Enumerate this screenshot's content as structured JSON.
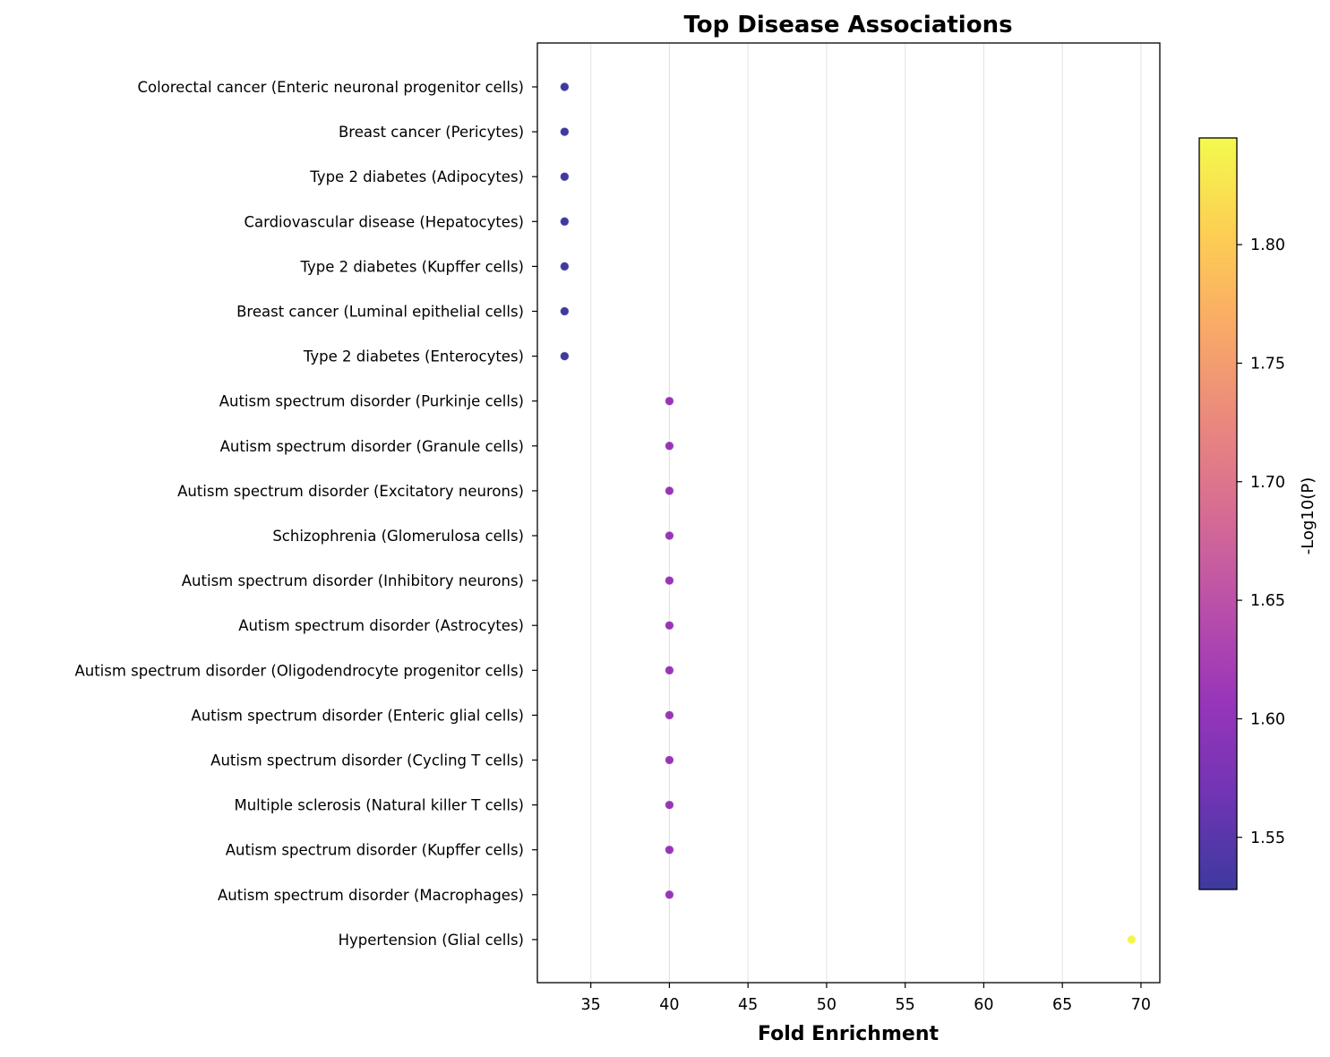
{
  "chart_data": {
    "type": "scatter",
    "title": "Top Disease Associations",
    "xlabel": "Fold Enrichment",
    "ylabel": "",
    "xlim": [
      31.6,
      71.2
    ],
    "xticks": [
      35,
      40,
      45,
      50,
      55,
      60,
      65,
      70
    ],
    "grid": "vertical",
    "colormap": "plasma",
    "colorbar": {
      "label": "-Log10(P)",
      "range": [
        1.528,
        1.845
      ],
      "ticks": [
        "1.55",
        "1.60",
        "1.65",
        "1.70",
        "1.75",
        "1.80"
      ]
    },
    "categories": [
      "Colorectal cancer (Enteric neuronal progenitor cells)",
      "Breast cancer (Pericytes)",
      "Type 2 diabetes (Adipocytes)",
      "Cardiovascular disease (Hepatocytes)",
      "Type 2 diabetes (Kupffer cells)",
      "Breast cancer (Luminal epithelial cells)",
      "Type 2 diabetes (Enterocytes)",
      "Autism spectrum disorder (Purkinje cells)",
      "Autism spectrum disorder (Granule cells)",
      "Autism spectrum disorder (Excitatory neurons)",
      "Schizophrenia (Glomerulosa cells)",
      "Autism spectrum disorder (Inhibitory neurons)",
      "Autism spectrum disorder (Astrocytes)",
      "Autism spectrum disorder (Oligodendrocyte progenitor cells)",
      "Autism spectrum disorder (Enteric glial cells)",
      "Autism spectrum disorder (Cycling T cells)",
      "Multiple sclerosis (Natural killer T cells)",
      "Autism spectrum disorder (Kupffer cells)",
      "Autism spectrum disorder (Macrophages)",
      "Hypertension (Glial cells)"
    ],
    "x": [
      33.33,
      33.33,
      33.33,
      33.33,
      33.33,
      33.33,
      33.33,
      40,
      40,
      40,
      40,
      40,
      40,
      40,
      40,
      40,
      40,
      40,
      40,
      69.4
    ],
    "neg_log10_p": [
      1.53,
      1.53,
      1.53,
      1.53,
      1.53,
      1.53,
      1.53,
      1.61,
      1.61,
      1.61,
      1.61,
      1.61,
      1.61,
      1.61,
      1.61,
      1.61,
      1.61,
      1.61,
      1.61,
      1.84
    ]
  }
}
